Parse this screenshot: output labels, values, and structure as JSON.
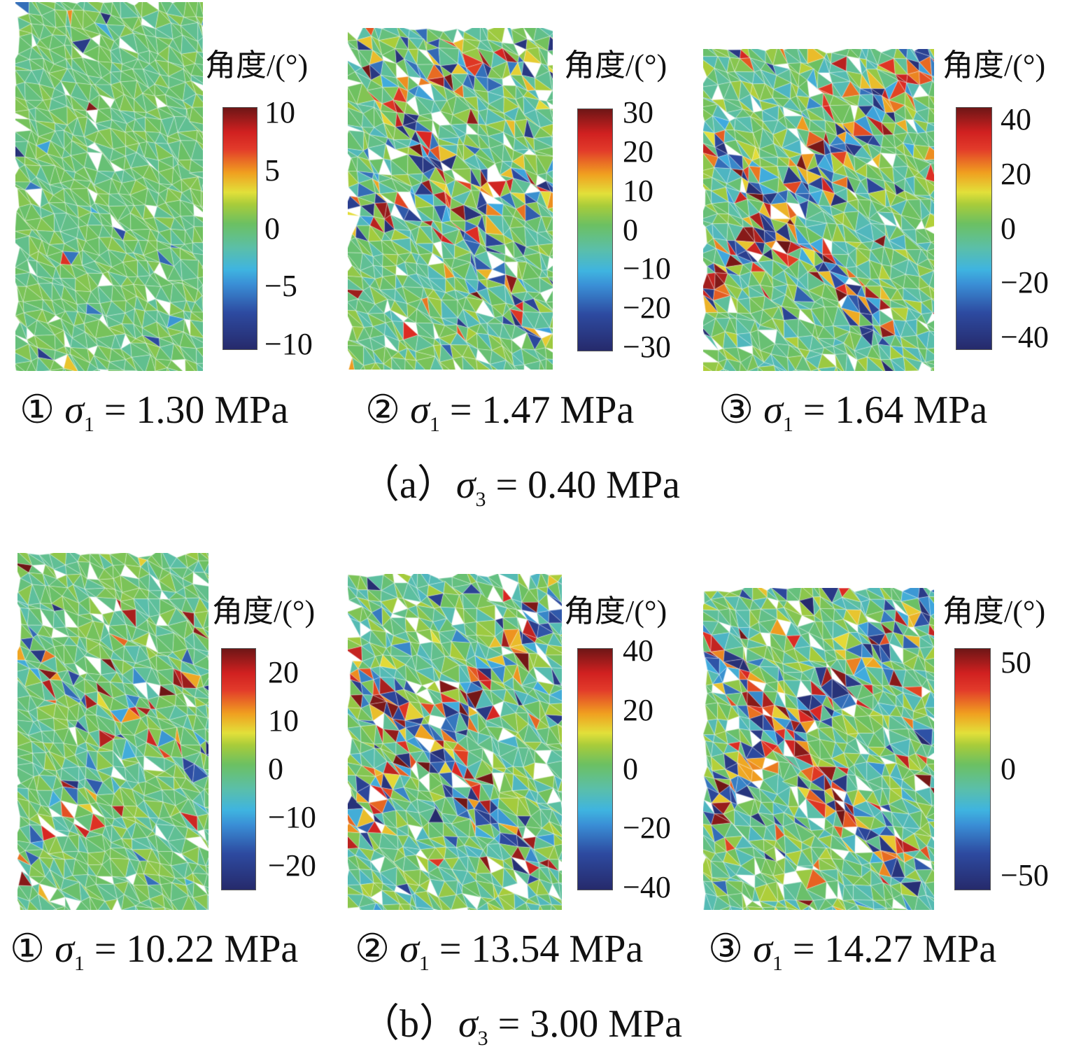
{
  "colorbar_title": "角度/(°)",
  "colormap": [
    "#262a6b",
    "#2d4aa0",
    "#3fb4e0",
    "#6cc062",
    "#e2e03a",
    "#f0a020",
    "#d02020",
    "#6e1616"
  ],
  "groups": [
    {
      "label": "（a）",
      "symbol": "σ",
      "subscript": "3",
      "value": "= 0.40 MPa",
      "panels": [
        {
          "num": "①",
          "symbol": "σ",
          "subscript": "1",
          "value": "= 1.30 MPa",
          "range": [
            -10.5,
            10.5
          ],
          "ticks": [
            "10",
            "5",
            "0",
            "−5",
            "−10"
          ],
          "tick_values": [
            10,
            5,
            0,
            -5,
            -10
          ]
        },
        {
          "num": "②",
          "symbol": "σ",
          "subscript": "1",
          "value": "= 1.47 MPa",
          "range": [
            -31,
            31
          ],
          "ticks": [
            "30",
            "20",
            "10",
            "0",
            "−10",
            "−20",
            "−30"
          ],
          "tick_values": [
            30,
            20,
            10,
            0,
            -10,
            -20,
            -30
          ]
        },
        {
          "num": "③",
          "symbol": "σ",
          "subscript": "1",
          "value": "= 1.64 MPa",
          "range": [
            -44.5,
            44.5
          ],
          "ticks": [
            "40",
            "20",
            "0",
            "−20",
            "−40"
          ],
          "tick_values": [
            40,
            20,
            0,
            -20,
            -40
          ]
        }
      ]
    },
    {
      "label": "（b）",
      "symbol": "σ",
      "subscript": "3",
      "value": "= 3.00 MPa",
      "panels": [
        {
          "num": "①",
          "symbol": "σ",
          "subscript": "1",
          "value": "= 10.22 MPa",
          "range": [
            -25,
            25
          ],
          "ticks": [
            "20",
            "10",
            "0",
            "−10",
            "−20"
          ],
          "tick_values": [
            20,
            10,
            0,
            -10,
            -20
          ]
        },
        {
          "num": "②",
          "symbol": "σ",
          "subscript": "1",
          "value": "= 13.54 MPa",
          "range": [
            -41,
            41
          ],
          "ticks": [
            "40",
            "20",
            "0",
            "−20",
            "−40"
          ],
          "tick_values": [
            40,
            20,
            0,
            -20,
            -40
          ]
        },
        {
          "num": "③",
          "symbol": "σ",
          "subscript": "1",
          "value": "= 14.27 MPa",
          "range": [
            -57,
            57
          ],
          "ticks": [
            "50",
            "0",
            "−50"
          ],
          "tick_values": [
            50,
            0,
            -50
          ]
        }
      ]
    }
  ]
}
